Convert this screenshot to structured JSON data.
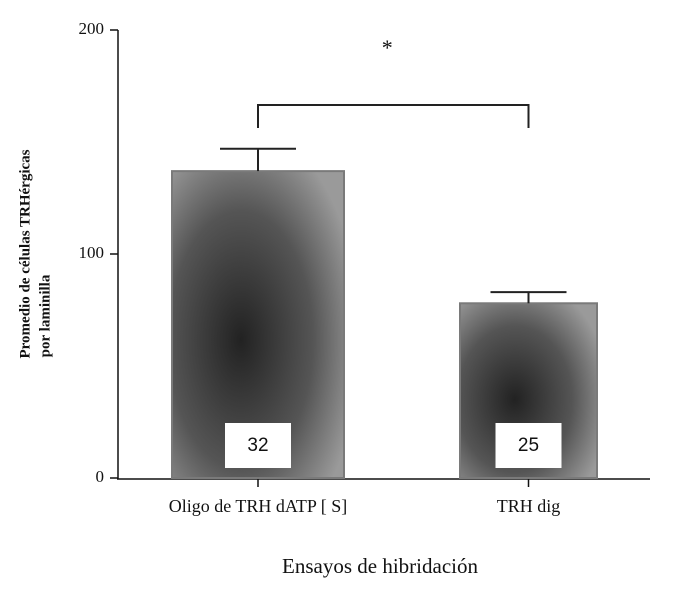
{
  "chart_data": {
    "type": "bar",
    "y_label": [
      "Promedio de células TRHérgicas",
      "por laminilla"
    ],
    "x_label": "Ensayos de hibridación",
    "categories": [
      "Oligo de TRH dATP [ S]",
      "TRH dig"
    ],
    "values": [
      137,
      78
    ],
    "errors": [
      10,
      5
    ],
    "bar_labels": [
      "32",
      "25"
    ],
    "significance": "*",
    "color": "#7a7a7a",
    "ylim": [
      0,
      200
    ],
    "yticks": [
      0,
      100,
      200
    ]
  }
}
